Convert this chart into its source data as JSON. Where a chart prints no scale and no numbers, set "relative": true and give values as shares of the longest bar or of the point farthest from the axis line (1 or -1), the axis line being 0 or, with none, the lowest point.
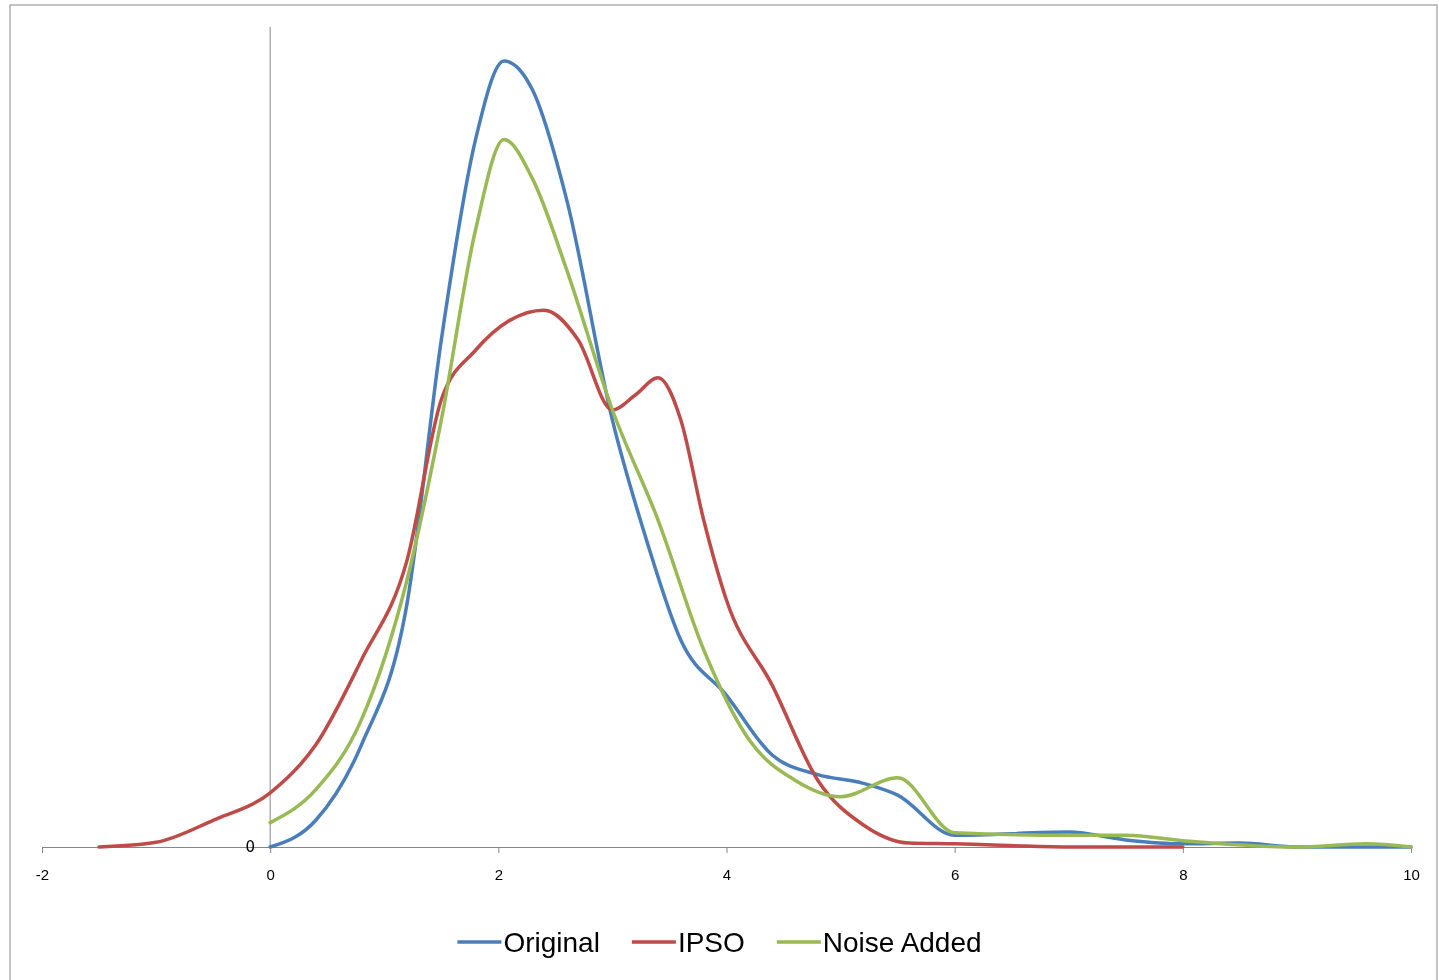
{
  "chart_data": {
    "type": "line",
    "relative": true,
    "legend": "bottom",
    "xlim": [
      -2,
      10
    ],
    "xticks": [
      -2,
      0,
      2,
      4,
      6,
      8,
      10
    ],
    "annotations": [
      {
        "text": "0",
        "x": 0,
        "y": 0
      }
    ],
    "series": [
      {
        "name": "Original",
        "color": "#4a7ebb",
        "x": [
          0,
          0.4,
          0.8,
          1.2,
          1.5,
          1.8,
          2.05,
          2.3,
          2.6,
          3.0,
          3.3,
          3.6,
          4.0,
          4.4,
          4.8,
          5.2,
          5.5,
          6.0,
          7.0,
          7.5,
          8.0,
          8.5,
          9.0,
          10
        ],
        "values": [
          0,
          0.034,
          0.13,
          0.31,
          0.645,
          0.9,
          1,
          0.963,
          0.823,
          0.543,
          0.39,
          0.263,
          0.193,
          0.117,
          0.092,
          0.081,
          0.066,
          0.015,
          0.019,
          0.009,
          0.004,
          0.005,
          0,
          0
        ]
      },
      {
        "name": "IPSO",
        "color": "#be4b48",
        "x": [
          -1.5,
          -1.0,
          -0.5,
          0,
          0.4,
          0.8,
          1.2,
          1.5,
          1.8,
          2.1,
          2.4,
          2.7,
          3.0,
          3.2,
          3.4,
          3.6,
          3.8,
          4.0,
          4.4,
          4.8,
          5.2,
          5.6,
          6.0,
          7.0,
          8.0
        ],
        "values": [
          0,
          0.006,
          0.034,
          0.069,
          0.13,
          0.238,
          0.365,
          0.569,
          0.632,
          0.67,
          0.683,
          0.645,
          0.556,
          0.575,
          0.597,
          0.543,
          0.416,
          0.314,
          0.206,
          0.085,
          0.028,
          0.005,
          0.004,
          0,
          0
        ]
      },
      {
        "name": "Noise Added",
        "color": "#98b954",
        "x": [
          0,
          0.4,
          0.8,
          1.2,
          1.5,
          1.8,
          2.05,
          2.3,
          2.6,
          3.0,
          3.4,
          3.8,
          4.2,
          4.6,
          5.0,
          5.5,
          6.0,
          7.0,
          7.5,
          8.0,
          9.0,
          9.6,
          10
        ],
        "values": [
          0.031,
          0.073,
          0.162,
          0.34,
          0.543,
          0.785,
          0.9,
          0.85,
          0.734,
          0.556,
          0.416,
          0.251,
          0.136,
          0.085,
          0.064,
          0.088,
          0.018,
          0.015,
          0.015,
          0.008,
          0,
          0.004,
          0
        ]
      }
    ]
  }
}
